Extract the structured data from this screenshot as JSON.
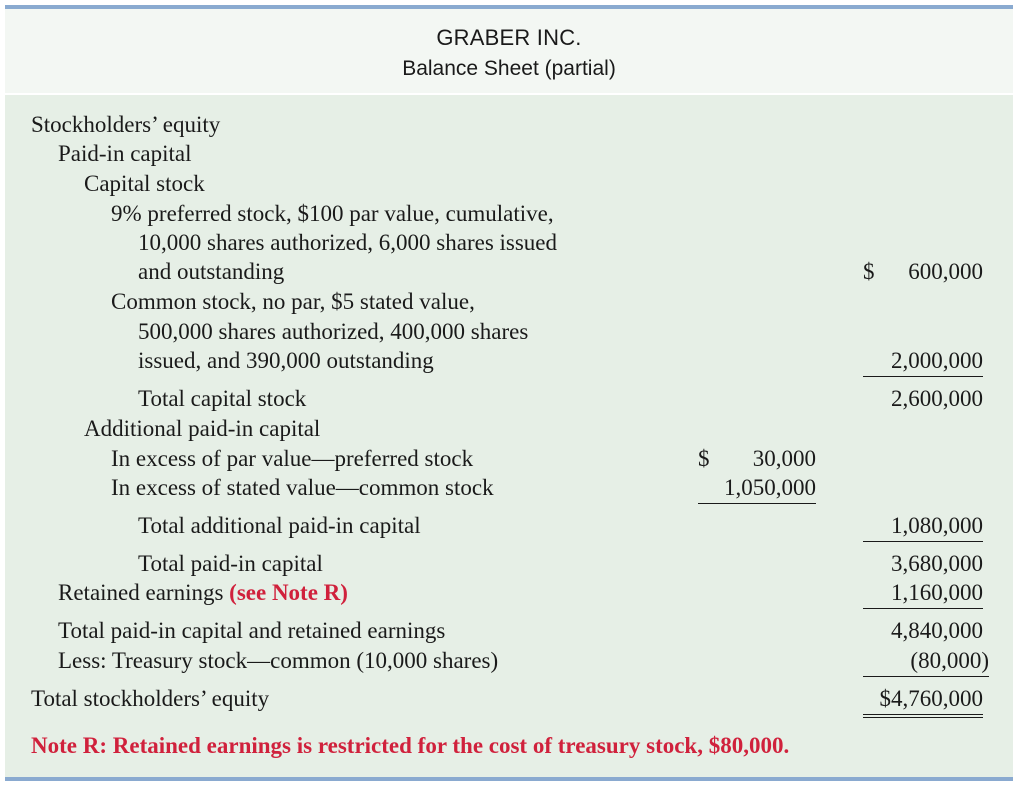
{
  "header": {
    "company": "GRABER INC.",
    "title": "Balance Sheet (partial)"
  },
  "equity": {
    "section": "Stockholders’ equity",
    "paid_in_capital": "Paid-in capital",
    "capital_stock": "Capital stock",
    "preferred_line1": "9% preferred stock, $100 par value, cumulative,",
    "preferred_line2": "10,000 shares authorized, 6,000 shares issued",
    "preferred_line3": "and outstanding",
    "preferred_amount_symbol": "$",
    "preferred_amount": "600,000",
    "common_line1": "Common stock, no par, $5 stated value,",
    "common_line2": "500,000 shares authorized, 400,000 shares",
    "common_line3": "issued, and 390,000 outstanding",
    "common_amount": "2,000,000",
    "total_capital_stock": "Total capital stock",
    "total_capital_stock_amount": "2,600,000",
    "additional_paid_in": "Additional paid-in capital",
    "excess_preferred": "In excess of par value—preferred stock",
    "excess_preferred_symbol": "$",
    "excess_preferred_amount": "30,000",
    "excess_common": "In excess of stated value—common stock",
    "excess_common_amount": "1,050,000",
    "total_additional": "Total additional paid-in capital",
    "total_additional_amount": "1,080,000",
    "total_paid_in": "Total paid-in capital",
    "total_paid_in_amount": "3,680,000",
    "retained_earnings": "Retained earnings",
    "retained_note": "(see Note R)",
    "retained_amount": "1,160,000",
    "total_pic_re": "Total paid-in capital and retained earnings",
    "total_pic_re_amount": "4,840,000",
    "treasury": "Less: Treasury stock—common (10,000 shares)",
    "treasury_amount": "(80,000)",
    "total_equity": "Total stockholders’ equity",
    "total_equity_amount": "$4,760,000"
  },
  "note": {
    "text": "Note R: Retained earnings is restricted for the cost of treasury stock, $80,000."
  },
  "colors": {
    "background": "#e6efe6",
    "header_background": "#f3f7f3",
    "rule": "#8aaad0",
    "accent_red": "#d0213c"
  }
}
